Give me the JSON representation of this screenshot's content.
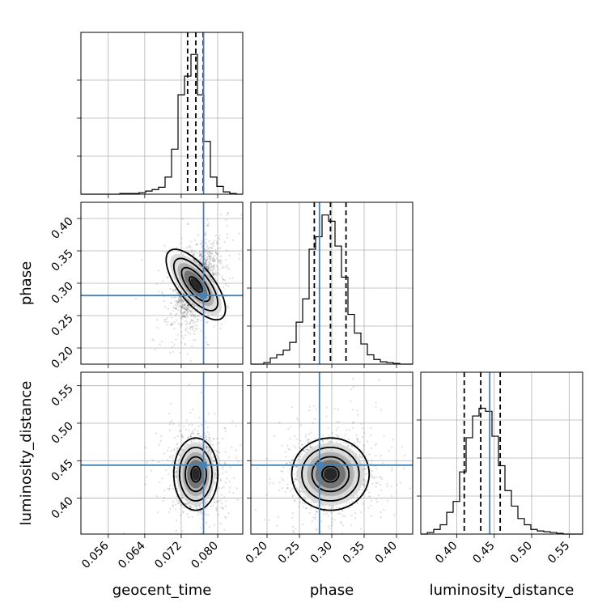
{
  "chart_data": {
    "type": "corner",
    "parameters": [
      "geocent_time",
      "phase",
      "luminosity_distance"
    ],
    "truths": {
      "geocent_time": 0.0769,
      "phase": 0.281,
      "luminosity_distance": 0.444
    },
    "quantiles": {
      "geocent_time": [
        0.0734,
        0.0752,
        0.0768
      ],
      "phase": [
        0.273,
        0.298,
        0.322
      ],
      "luminosity_distance": [
        0.41,
        0.432,
        0.458
      ]
    },
    "axes": {
      "geocent_time": {
        "range": [
          0.05,
          0.0855
        ],
        "ticks": [
          0.056,
          0.064,
          0.072,
          0.08
        ],
        "tick_labels": [
          "0.056",
          "0.064",
          "0.072",
          "0.080"
        ]
      },
      "phase": {
        "range": [
          0.175,
          0.425
        ],
        "ticks": [
          0.2,
          0.25,
          0.3,
          0.35,
          0.4
        ],
        "tick_labels": [
          "0.20",
          "0.25",
          "0.30",
          "0.35",
          "0.40"
        ]
      },
      "luminosity_distance": {
        "range": [
          0.352,
          0.568
        ],
        "ticks": [
          0.4,
          0.45,
          0.5,
          0.55
        ],
        "tick_labels": [
          "0.40",
          "0.45",
          "0.50",
          "0.55"
        ]
      }
    },
    "histograms": {
      "geocent_time": {
        "bin_range": [
          0.05,
          0.0855
        ],
        "heights": [
          0,
          0,
          0,
          0,
          0,
          0,
          0.005,
          0.005,
          0.005,
          0.01,
          0.02,
          0.03,
          0.045,
          0.11,
          0.29,
          0.64,
          0.76,
          0.9,
          0.64,
          0.34,
          0.11,
          0.05,
          0.015,
          0.005,
          0
        ]
      },
      "phase": {
        "bin_range": [
          0.175,
          0.425
        ],
        "heights": [
          0,
          0,
          0.01,
          0.04,
          0.06,
          0.09,
          0.14,
          0.27,
          0.42,
          0.74,
          0.82,
          0.96,
          0.92,
          0.76,
          0.56,
          0.32,
          0.2,
          0.13,
          0.06,
          0.03,
          0.015,
          0.01,
          0.005,
          0,
          0
        ]
      },
      "luminosity_distance": {
        "bin_range": [
          0.352,
          0.568
        ],
        "heights": [
          0,
          0.01,
          0.03,
          0.06,
          0.14,
          0.21,
          0.4,
          0.62,
          0.76,
          0.81,
          0.79,
          0.63,
          0.44,
          0.28,
          0.18,
          0.1,
          0.06,
          0.03,
          0.02,
          0.015,
          0.01,
          0.005,
          0,
          0,
          0
        ]
      }
    },
    "title": "",
    "grid": true
  }
}
